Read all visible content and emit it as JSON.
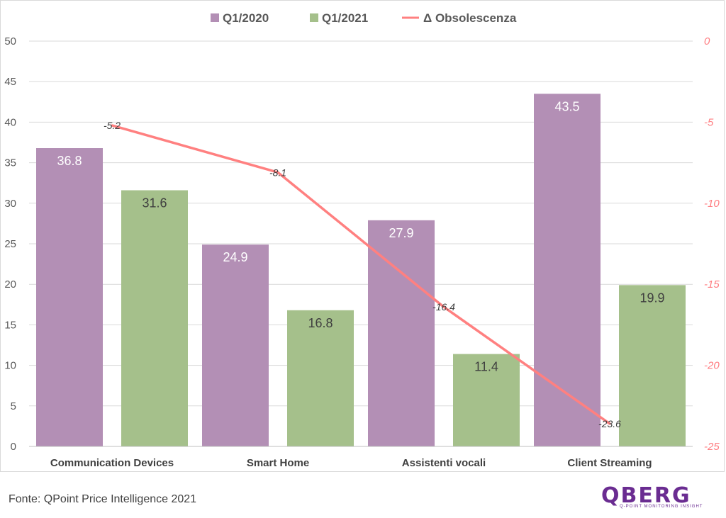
{
  "chart_data": {
    "type": "bar",
    "categories": [
      "Communication Devices",
      "Smart Home",
      "Assistenti vocali",
      "Client Streaming"
    ],
    "series": [
      {
        "name": "Q1/2020",
        "type": "bar",
        "axis": "left",
        "color": "#b38fb5",
        "values": [
          36.8,
          24.9,
          27.9,
          43.5
        ]
      },
      {
        "name": "Q1/2021",
        "type": "bar",
        "axis": "left",
        "color": "#a5c08b",
        "values": [
          31.6,
          16.8,
          11.4,
          19.9
        ]
      },
      {
        "name": "Δ Obsolescenza",
        "type": "line",
        "axis": "right",
        "color": "#ff8080",
        "values": [
          -5.2,
          -8.1,
          -16.4,
          -23.6
        ]
      }
    ],
    "data_labels_2020": [
      "36.8",
      "24.9",
      "27.9",
      "43.5"
    ],
    "data_labels_2021": [
      "31.6",
      "16.8",
      "11.4",
      "19.9"
    ],
    "data_labels_delta": [
      "-5.2",
      "-8.1",
      "-16.4",
      "-23.6"
    ],
    "ylim_left": [
      0,
      50
    ],
    "ylim_right": [
      -25,
      0
    ],
    "yticks_left": [
      "0",
      "5",
      "10",
      "15",
      "20",
      "25",
      "30",
      "35",
      "40",
      "45",
      "50"
    ],
    "yticks_right": [
      "-25",
      "-20",
      "-15",
      "-10",
      "-5",
      "0"
    ],
    "grid": true,
    "legend_position": "top"
  },
  "source": "Fonte: QPoint Price Intelligence 2021",
  "logo": {
    "word": "QBERG",
    "tagline": "Q-POINT MONITORING INSIGHT"
  }
}
